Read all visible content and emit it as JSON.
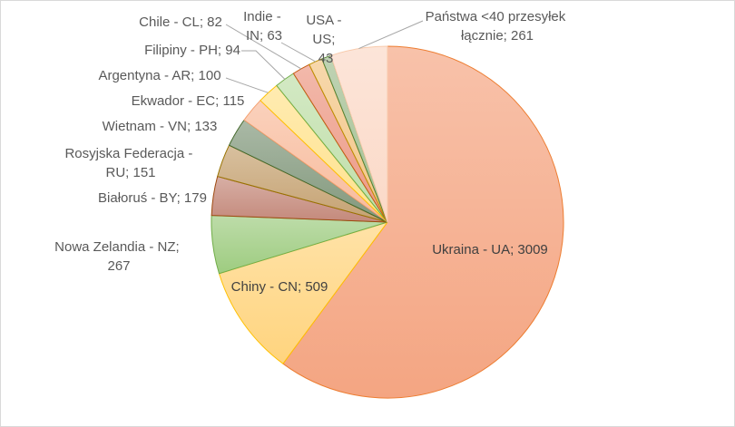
{
  "chart_data": {
    "type": "pie",
    "categories": [
      "Ukraina - UA",
      "Chiny - CN",
      "Nowa Zelandia - NZ",
      "Białoruś - BY",
      "Rosyjska Federacja - RU",
      "Wietnam - VN",
      "Ekwador - EC",
      "Argentyna - AR",
      "Filipiny - PH",
      "Chile - CL",
      "Indie - IN",
      "USA - US",
      "Państwa <40 przesyłek łącznie"
    ],
    "values": [
      3009,
      509,
      267,
      179,
      151,
      133,
      115,
      100,
      94,
      82,
      63,
      43,
      261
    ],
    "label_separator": "; ",
    "colors": [
      "#f4a582",
      "#ffd47e",
      "#9ecc80",
      "#c4897b",
      "#c5a272",
      "#82987c",
      "#f8bb9c",
      "#ffe28c",
      "#bfdea8",
      "#ec9884",
      "#f3c585",
      "#a2bf90",
      "#fbd9c7"
    ],
    "outline_colors": [
      "#ed7d31",
      "#ffc000",
      "#70ad47",
      "#9e480e",
      "#997300",
      "#43682b",
      "#f4a070",
      "#ffc000",
      "#70ad47",
      "#c55a11",
      "#bf9000",
      "#548235",
      "#f8cbad"
    ]
  }
}
